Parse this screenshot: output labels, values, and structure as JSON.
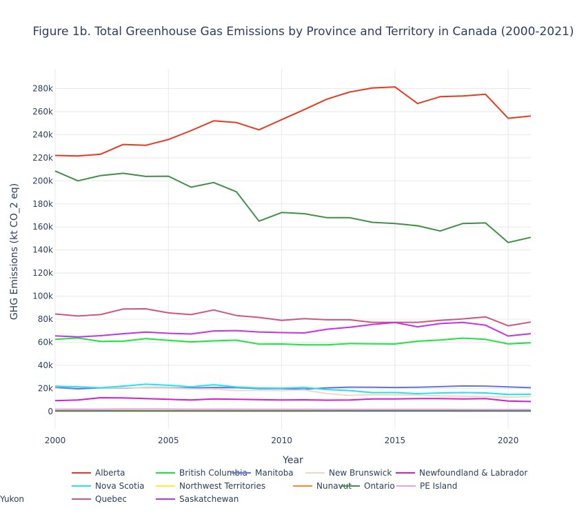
{
  "chart_data": {
    "type": "line",
    "title": "Figure 1b. Total Greenhouse Gas Emissions by Province and Territory in Canada (2000-2021)",
    "xlabel": "Year",
    "ylabel": "GHG Emissions (kt CO_2 eq)",
    "xlim": [
      2000,
      2021
    ],
    "ylim": [
      -15000,
      297000
    ],
    "x_ticks": [
      2000,
      2005,
      2010,
      2015,
      2020
    ],
    "y_ticks": [
      0,
      20000,
      40000,
      60000,
      80000,
      100000,
      120000,
      140000,
      160000,
      180000,
      200000,
      220000,
      240000,
      260000,
      280000
    ],
    "y_tick_labels": [
      "0",
      "20k",
      "40k",
      "60k",
      "80k",
      "100k",
      "120k",
      "140k",
      "160k",
      "180k",
      "200k",
      "220k",
      "240k",
      "260k",
      "280k"
    ],
    "x": [
      2000,
      2001,
      2002,
      2003,
      2004,
      2005,
      2006,
      2007,
      2008,
      2009,
      2010,
      2011,
      2012,
      2013,
      2014,
      2015,
      2016,
      2017,
      2018,
      2019,
      2020,
      2021
    ],
    "grid": true,
    "legend_position": "bottom",
    "series": [
      {
        "name": "Alberta",
        "color": "#e8391d",
        "values": [
          222000,
          221500,
          223000,
          231500,
          230800,
          235800,
          243500,
          252000,
          250500,
          244200,
          253000,
          261800,
          270800,
          277000,
          280500,
          281400,
          267000,
          273000,
          273500,
          275000,
          254200,
          256200
        ]
      },
      {
        "name": "British Columbia",
        "color": "#19e63a",
        "values": [
          62500,
          63700,
          60800,
          60900,
          63200,
          61700,
          60300,
          61200,
          61800,
          58400,
          58500,
          57800,
          57800,
          58900,
          58700,
          58500,
          60900,
          61900,
          63600,
          62500,
          58600,
          59600
        ]
      },
      {
        "name": "Manitoba",
        "color": "#6272e8",
        "values": [
          20900,
          19600,
          20500,
          20400,
          20700,
          20500,
          20300,
          20800,
          20700,
          19800,
          19800,
          19300,
          20500,
          21100,
          21000,
          20800,
          21000,
          21500,
          22100,
          22000,
          21300,
          20600
        ]
      },
      {
        "name": "New Brunswick",
        "color": "#f5d5c5",
        "values": [
          21500,
          21900,
          20500,
          20800,
          20500,
          20200,
          19600,
          19500,
          18200,
          18300,
          18100,
          18700,
          15500,
          14000,
          14500,
          14400,
          14200,
          13500,
          13300,
          12900,
          12500,
          12800
        ]
      },
      {
        "name": "Newfoundland & Labrador",
        "color": "#d61ad6",
        "values": [
          9300,
          10000,
          11900,
          11800,
          11100,
          10500,
          10000,
          10900,
          10600,
          10200,
          10000,
          10100,
          9800,
          9900,
          10900,
          10900,
          11100,
          11100,
          10900,
          11100,
          9100,
          8600
        ]
      },
      {
        "name": "Nova Scotia",
        "color": "#21e3f0",
        "values": [
          22000,
          21200,
          20500,
          22000,
          23600,
          22700,
          21400,
          23200,
          21200,
          20300,
          20200,
          20800,
          19000,
          18100,
          16300,
          16400,
          15500,
          16000,
          16400,
          16100,
          14700,
          14800
        ]
      },
      {
        "name": "Northwest Territories",
        "color": "#ffee2a",
        "values": [
          1500,
          1600,
          1600,
          1700,
          1800,
          1800,
          1700,
          1700,
          1600,
          1500,
          1400,
          1400,
          1500,
          1400,
          1400,
          1400,
          1300,
          1300,
          1300,
          1300,
          1300,
          1300
        ]
      },
      {
        "name": "Nunavut",
        "color": "#f58c1a",
        "values": [
          500,
          500,
          500,
          500,
          500,
          500,
          500,
          500,
          500,
          500,
          500,
          500,
          600,
          600,
          600,
          600,
          600,
          600,
          600,
          600,
          600,
          600
        ]
      },
      {
        "name": "Ontario",
        "color": "#3d8f45",
        "values": [
          208500,
          200000,
          204500,
          206500,
          203800,
          204000,
          194500,
          198500,
          190500,
          165000,
          172500,
          171500,
          168000,
          168000,
          164000,
          163000,
          161000,
          156500,
          163000,
          163500,
          146500,
          151000
        ]
      },
      {
        "name": "PE Island",
        "color": "#dca3e8",
        "values": [
          2000,
          2000,
          2000,
          2100,
          2100,
          2100,
          2000,
          2000,
          2000,
          1900,
          1900,
          1900,
          1800,
          1800,
          1800,
          1800,
          1800,
          1800,
          1700,
          1700,
          1600,
          1600
        ]
      },
      {
        "name": "Quebec",
        "color": "#d2547a",
        "values": [
          84500,
          82800,
          84000,
          88800,
          89000,
          85500,
          84000,
          88000,
          83200,
          81500,
          79000,
          80500,
          79500,
          79500,
          77300,
          77300,
          77300,
          79000,
          80300,
          82000,
          74300,
          77500
        ]
      },
      {
        "name": "Saskatchewan",
        "color": "#c530ea",
        "values": [
          65500,
          64600,
          65700,
          67400,
          68800,
          67800,
          67200,
          69800,
          70100,
          68900,
          68400,
          68100,
          71300,
          73000,
          75400,
          77100,
          73400,
          76200,
          77200,
          74800,
          65400,
          67500
        ]
      },
      {
        "name": "Yukon",
        "color": "#4f7a6a",
        "values": [
          500,
          500,
          500,
          500,
          500,
          500,
          500,
          500,
          500,
          500,
          500,
          500,
          500,
          500,
          500,
          500,
          500,
          500,
          500,
          500,
          500,
          500
        ]
      }
    ]
  }
}
